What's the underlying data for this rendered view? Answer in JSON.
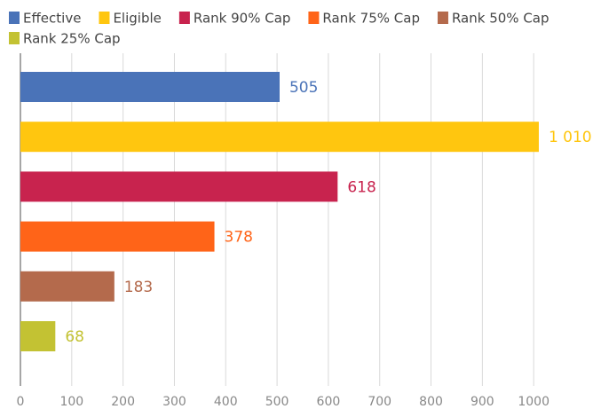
{
  "chart_data": {
    "type": "bar",
    "orientation": "horizontal",
    "series": [
      {
        "name": "Effective",
        "color": "#4a73b8",
        "values": [
          505
        ]
      },
      {
        "name": "Eligible",
        "color": "#ffc60f",
        "values": [
          1010
        ],
        "value_labels": [
          "1 010"
        ]
      },
      {
        "name": "Rank 90% Cap",
        "color": "#c8234e",
        "values": [
          618
        ]
      },
      {
        "name": "Rank 75% Cap",
        "color": "#ff6418",
        "values": [
          378
        ]
      },
      {
        "name": "Rank 50% Cap",
        "color": "#b46a4c",
        "values": [
          183
        ]
      },
      {
        "name": "Rank 25% Cap",
        "color": "#c3c233",
        "values": [
          68
        ]
      }
    ],
    "xlim": [
      0,
      1100
    ],
    "xticks": [
      0,
      100,
      200,
      300,
      400,
      500,
      600,
      700,
      800,
      900,
      1000
    ],
    "grid": true,
    "legend": "top"
  }
}
